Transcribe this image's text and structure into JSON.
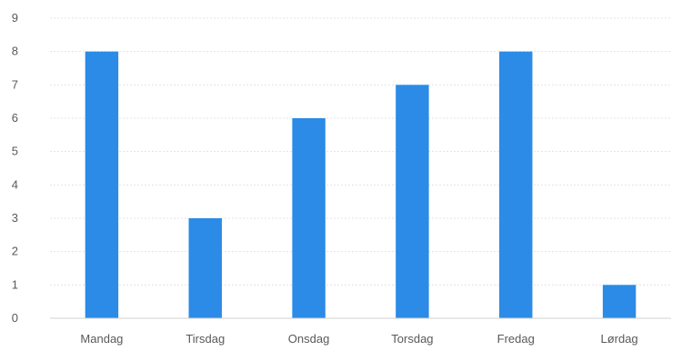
{
  "chart_data": {
    "type": "bar",
    "title": "",
    "xlabel": "",
    "ylabel": "",
    "categories": [
      "Mandag",
      "Tirsdag",
      "Onsdag",
      "Torsdag",
      "Fredag",
      "Lørdag"
    ],
    "values": [
      8,
      3,
      6,
      7,
      8,
      1
    ],
    "ylim": [
      0,
      9
    ],
    "yticks": [
      "0",
      "1",
      "2",
      "3",
      "4",
      "5",
      "6",
      "7",
      "8",
      "9"
    ],
    "grid": true,
    "legend": "none",
    "bar_color": "#2b8be6"
  }
}
